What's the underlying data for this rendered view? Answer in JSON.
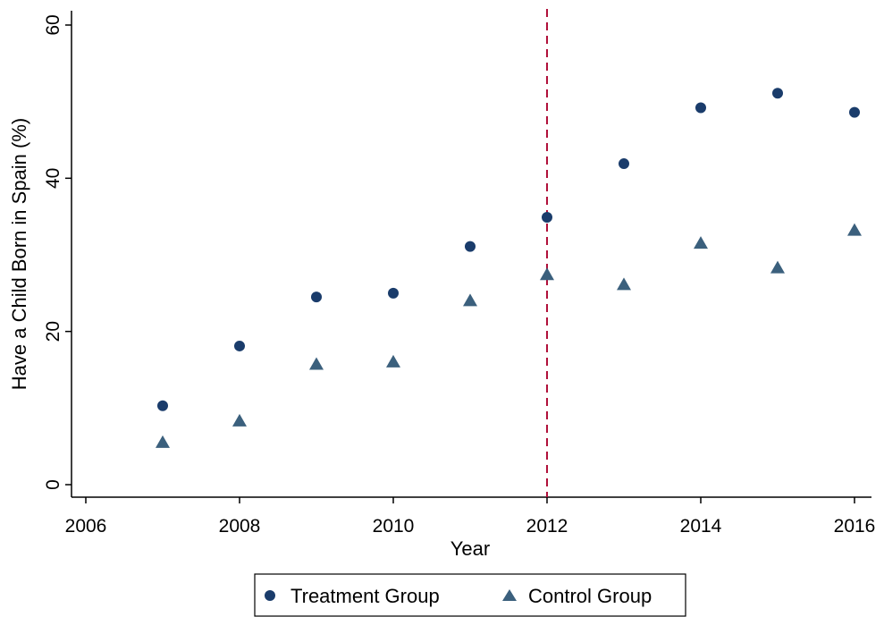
{
  "chart_data": {
    "type": "scatter",
    "title": "",
    "xlabel": "Year",
    "ylabel": "Have a Child Born in Spain (%)",
    "xlim": [
      2006,
      2016
    ],
    "ylim": [
      0,
      60
    ],
    "xticks": [
      2006,
      2008,
      2010,
      2012,
      2014,
      2016
    ],
    "yticks": [
      0,
      20,
      40,
      60
    ],
    "xtick_labels": [
      "2006",
      "2008",
      "2010",
      "2012",
      "2014",
      "2016"
    ],
    "ytick_labels": [
      "0",
      "20",
      "40",
      "60"
    ],
    "grid": false,
    "legend_position": "bottom",
    "reference_line": {
      "x": 2012,
      "style": "dashed",
      "color": "#b0103a"
    },
    "series": [
      {
        "name": "Treatment Group",
        "marker": "circle",
        "color": "#1a3c6b",
        "x": [
          2007,
          2008,
          2009,
          2010,
          2011,
          2012,
          2013,
          2014,
          2015,
          2016
        ],
        "y": [
          10.3,
          18.1,
          24.5,
          25.0,
          31.1,
          34.9,
          41.9,
          49.2,
          51.1,
          48.6
        ]
      },
      {
        "name": "Control Group",
        "marker": "triangle",
        "color": "#3b607d",
        "x": [
          2007,
          2008,
          2009,
          2010,
          2011,
          2012,
          2013,
          2014,
          2015,
          2016
        ],
        "y": [
          5.5,
          8.3,
          15.7,
          16.0,
          24.0,
          27.4,
          26.1,
          31.5,
          28.3,
          33.2
        ]
      }
    ]
  }
}
